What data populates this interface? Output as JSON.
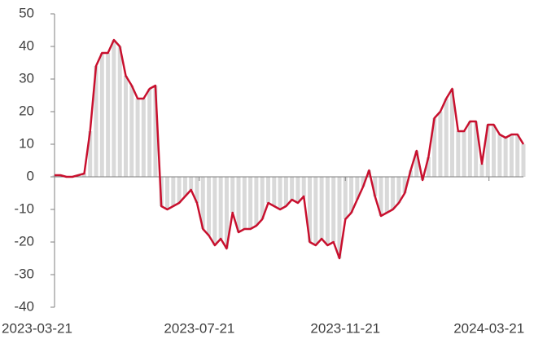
{
  "chart_data": {
    "type": "line",
    "x": [
      "2023-03-21",
      "2023-03-26",
      "2023-03-31",
      "2023-04-05",
      "2023-04-10",
      "2023-04-15",
      "2023-04-20",
      "2023-04-25",
      "2023-04-30",
      "2023-05-05",
      "2023-05-10",
      "2023-05-15",
      "2023-05-20",
      "2023-05-25",
      "2023-05-30",
      "2023-06-04",
      "2023-06-09",
      "2023-06-14",
      "2023-06-19",
      "2023-06-24",
      "2023-06-29",
      "2023-07-04",
      "2023-07-09",
      "2023-07-14",
      "2023-07-19",
      "2023-07-24",
      "2023-07-29",
      "2023-08-03",
      "2023-08-08",
      "2023-08-13",
      "2023-08-18",
      "2023-08-23",
      "2023-08-28",
      "2023-09-02",
      "2023-09-07",
      "2023-09-12",
      "2023-09-17",
      "2023-09-22",
      "2023-09-27",
      "2023-10-02",
      "2023-10-07",
      "2023-10-12",
      "2023-10-17",
      "2023-10-22",
      "2023-10-27",
      "2023-11-01",
      "2023-11-06",
      "2023-11-11",
      "2023-11-16",
      "2023-11-21",
      "2023-11-26",
      "2023-12-01",
      "2023-12-06",
      "2023-12-11",
      "2023-12-16",
      "2023-12-21",
      "2023-12-26",
      "2023-12-31",
      "2024-01-05",
      "2024-01-10",
      "2024-01-15",
      "2024-01-20",
      "2024-01-25",
      "2024-01-30",
      "2024-02-04",
      "2024-02-09",
      "2024-02-14",
      "2024-02-19",
      "2024-02-24",
      "2024-02-29",
      "2024-03-05",
      "2024-03-10",
      "2024-03-15",
      "2024-03-20",
      "2024-03-25",
      "2024-03-30",
      "2024-04-04",
      "2024-04-09",
      "2024-04-14",
      "2024-04-19"
    ],
    "values": [
      0.5,
      0.5,
      0,
      0,
      0.5,
      1,
      14,
      34,
      38,
      38,
      42,
      40,
      31,
      28,
      24,
      24,
      27,
      28,
      -9,
      -10,
      -9,
      -8,
      -6,
      -4,
      -8,
      -16,
      -18,
      -21,
      -19,
      -22,
      -11,
      -17,
      -16,
      -16,
      -15,
      -13,
      -8,
      -9,
      -10,
      -9,
      -7,
      -8,
      -6,
      -20,
      -21,
      -19,
      -21,
      -20,
      -25,
      -13,
      -11,
      -7,
      -3,
      2,
      -6,
      -12,
      -11,
      -10,
      -8,
      -5,
      2,
      8,
      -1,
      6,
      18,
      20,
      24,
      27,
      14,
      14,
      17,
      17,
      4,
      16,
      16,
      13,
      12,
      13,
      13,
      10
    ],
    "color": "#c8102e",
    "bar_color": "#d9d9d9",
    "xlim": [
      "2023-03-21",
      "2024-04-19"
    ],
    "xticks": [
      "2023-03-21",
      "2023-07-21",
      "2023-11-21",
      "2024-03-21"
    ],
    "ylim": [
      -40,
      50
    ],
    "yticks": [
      -40,
      -30,
      -20,
      -10,
      0,
      10,
      20,
      30,
      40,
      50
    ]
  }
}
